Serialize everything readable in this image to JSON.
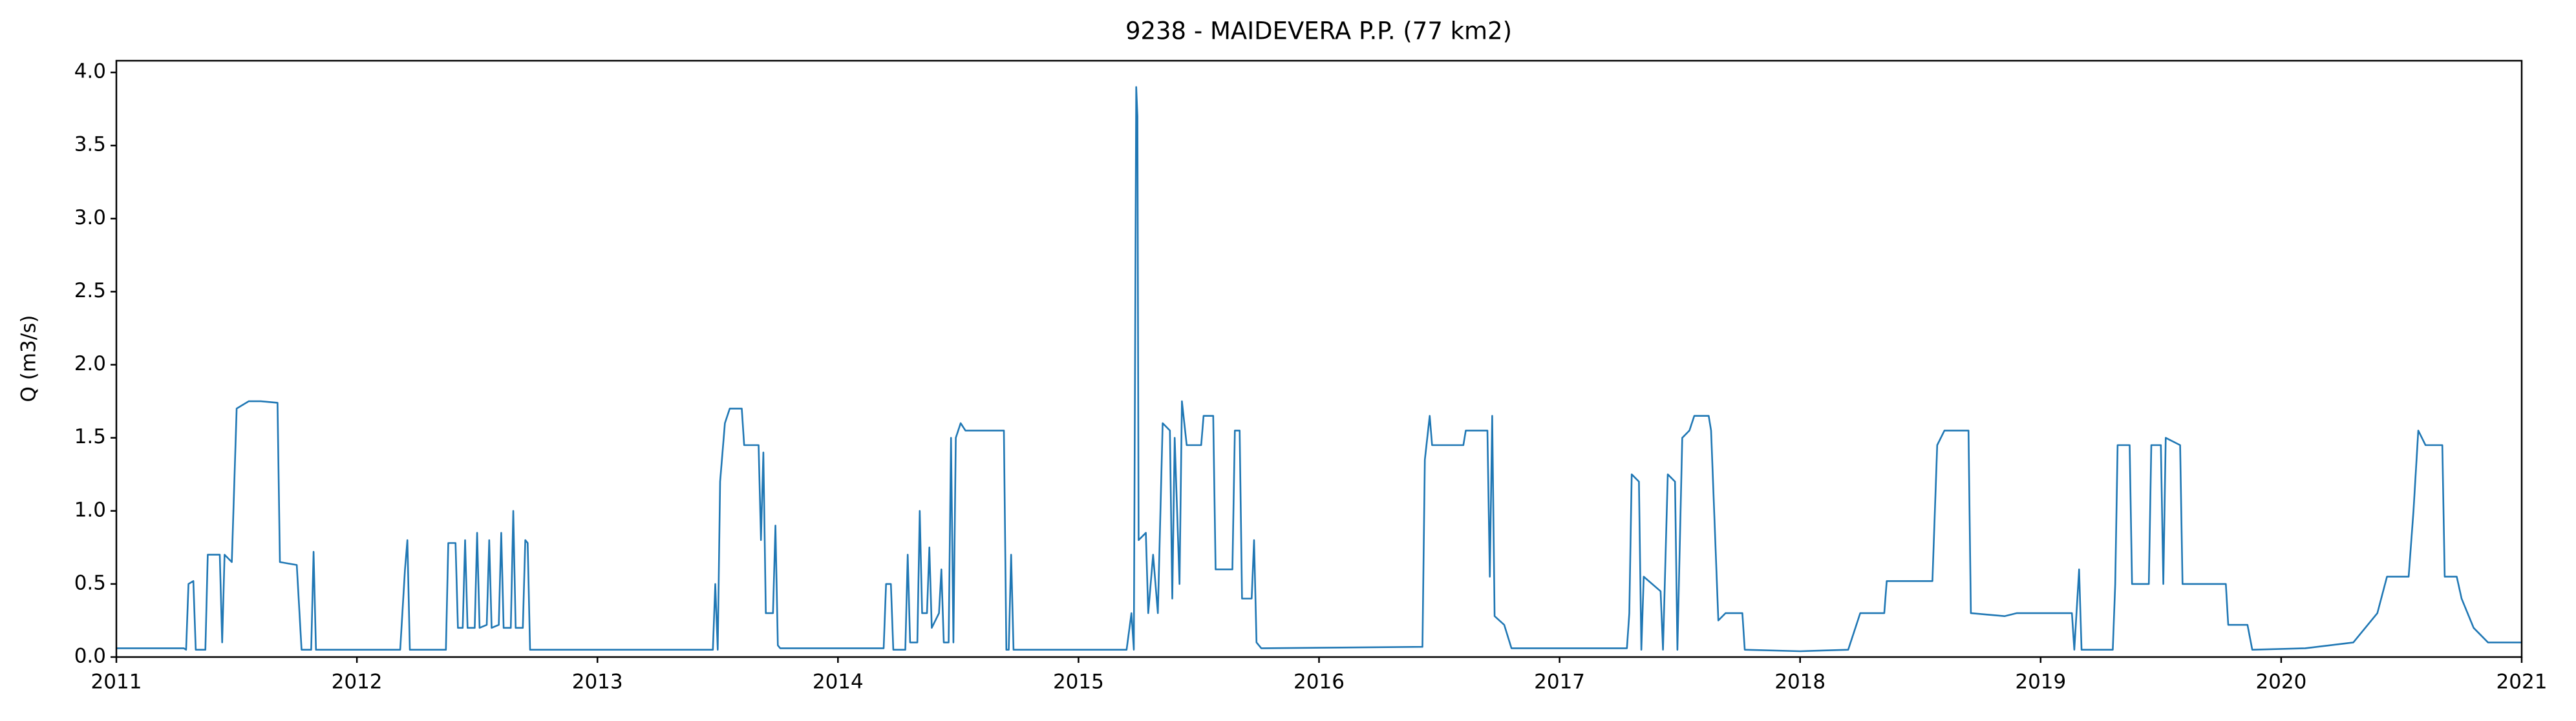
{
  "chart_data": {
    "type": "line",
    "title": "9238 - MAIDEVERA P.P. (77 km2)",
    "y_label": "Q (m3/s)",
    "color": "#1f77b4",
    "x": [
      2011,
      2011.28,
      2011.29,
      2011.3,
      2011.32,
      2011.33,
      2011.37,
      2011.38,
      2011.43,
      2011.44,
      2011.45,
      2011.48,
      2011.5,
      2011.55,
      2011.6,
      2011.67,
      2011.68,
      2011.75,
      2011.77,
      2011.81,
      2011.82,
      2011.83,
      2012.18,
      2012.2,
      2012.21,
      2012.22,
      2012.37,
      2012.38,
      2012.41,
      2012.42,
      2012.44,
      2012.45,
      2012.46,
      2012.49,
      2012.5,
      2012.51,
      2012.54,
      2012.55,
      2012.56,
      2012.59,
      2012.6,
      2012.61,
      2012.64,
      2012.65,
      2012.66,
      2012.69,
      2012.7,
      2012.71,
      2012.72,
      2013.48,
      2013.49,
      2013.5,
      2013.51,
      2013.53,
      2013.55,
      2013.6,
      2013.61,
      2013.67,
      2013.68,
      2013.69,
      2013.7,
      2013.73,
      2013.74,
      2013.75,
      2013.76,
      2014.19,
      2014.2,
      2014.22,
      2014.23,
      2014.28,
      2014.29,
      2014.3,
      2014.33,
      2014.34,
      2014.35,
      2014.37,
      2014.38,
      2014.39,
      2014.42,
      2014.43,
      2014.44,
      2014.46,
      2014.47,
      2014.48,
      2014.49,
      2014.51,
      2014.53,
      2014.69,
      2014.7,
      2014.71,
      2014.72,
      2014.73,
      2015.2,
      2015.22,
      2015.23,
      2015.24,
      2015.245,
      2015.25,
      2015.28,
      2015.29,
      2015.31,
      2015.33,
      2015.35,
      2015.38,
      2015.39,
      2015.4,
      2015.42,
      2015.43,
      2015.45,
      2015.51,
      2015.52,
      2015.56,
      2015.57,
      2015.64,
      2015.65,
      2015.67,
      2015.68,
      2015.72,
      2015.73,
      2015.74,
      2015.76,
      2016.43,
      2016.44,
      2016.46,
      2016.47,
      2016.6,
      2016.61,
      2016.7,
      2016.71,
      2016.72,
      2016.73,
      2016.77,
      2016.8,
      2017.28,
      2017.29,
      2017.3,
      2017.33,
      2017.34,
      2017.35,
      2017.42,
      2017.43,
      2017.45,
      2017.48,
      2017.49,
      2017.51,
      2017.54,
      2017.56,
      2017.62,
      2017.63,
      2017.66,
      2017.69,
      2017.76,
      2017.77,
      2018.0,
      2018.2,
      2018.25,
      2018.35,
      2018.36,
      2018.55,
      2018.57,
      2018.6,
      2018.7,
      2018.71,
      2018.85,
      2018.9,
      2019.13,
      2019.14,
      2019.16,
      2019.17,
      2019.3,
      2019.31,
      2019.32,
      2019.37,
      2019.38,
      2019.45,
      2019.46,
      2019.5,
      2019.51,
      2019.52,
      2019.58,
      2019.59,
      2019.77,
      2019.78,
      2019.86,
      2019.88,
      2020.1,
      2020.3,
      2020.4,
      2020.44,
      2020.53,
      2020.55,
      2020.57,
      2020.6,
      2020.67,
      2020.68,
      2020.73,
      2020.75,
      2020.8,
      2020.86,
      2021
    ],
    "values": [
      0.06,
      0.06,
      0.05,
      0.5,
      0.52,
      0.05,
      0.05,
      0.7,
      0.7,
      0.1,
      0.7,
      0.65,
      1.7,
      1.75,
      1.75,
      1.74,
      0.65,
      0.63,
      0.05,
      0.05,
      0.72,
      0.05,
      0.05,
      0.6,
      0.8,
      0.05,
      0.05,
      0.78,
      0.78,
      0.2,
      0.2,
      0.8,
      0.2,
      0.2,
      0.85,
      0.2,
      0.22,
      0.8,
      0.2,
      0.22,
      0.85,
      0.2,
      0.2,
      1.0,
      0.2,
      0.2,
      0.8,
      0.78,
      0.05,
      0.05,
      0.5,
      0.05,
      1.2,
      1.6,
      1.7,
      1.7,
      1.45,
      1.45,
      0.8,
      1.4,
      0.3,
      0.3,
      0.9,
      0.08,
      0.06,
      0.06,
      0.5,
      0.5,
      0.05,
      0.05,
      0.7,
      0.1,
      0.1,
      1.0,
      0.3,
      0.3,
      0.75,
      0.2,
      0.3,
      0.6,
      0.1,
      0.1,
      1.5,
      0.1,
      1.5,
      1.6,
      1.55,
      1.55,
      0.05,
      0.05,
      0.7,
      0.05,
      0.05,
      0.3,
      0.05,
      3.9,
      3.7,
      0.8,
      0.85,
      0.3,
      0.7,
      0.3,
      1.6,
      1.55,
      0.4,
      1.5,
      0.5,
      1.75,
      1.45,
      1.45,
      1.65,
      1.65,
      0.6,
      0.6,
      1.55,
      1.55,
      0.4,
      0.4,
      0.8,
      0.1,
      0.06,
      0.07,
      1.35,
      1.65,
      1.45,
      1.45,
      1.55,
      1.55,
      0.55,
      1.65,
      0.28,
      0.22,
      0.06,
      0.06,
      0.3,
      1.25,
      1.2,
      0.05,
      0.55,
      0.45,
      0.05,
      1.25,
      1.2,
      0.05,
      1.5,
      1.55,
      1.65,
      1.65,
      1.55,
      0.25,
      0.3,
      0.3,
      0.05,
      0.04,
      0.05,
      0.3,
      0.3,
      0.52,
      0.52,
      1.45,
      1.55,
      1.55,
      0.3,
      0.28,
      0.3,
      0.3,
      0.05,
      0.6,
      0.05,
      0.05,
      0.5,
      1.45,
      1.45,
      0.5,
      0.5,
      1.45,
      1.45,
      0.5,
      1.5,
      1.45,
      0.5,
      0.5,
      0.22,
      0.22,
      0.05,
      0.06,
      0.1,
      0.3,
      0.55,
      0.55,
      1.0,
      1.55,
      1.45,
      1.45,
      0.55,
      0.55,
      0.4,
      0.2,
      0.1,
      0.1
    ],
    "xlim": [
      2011,
      2021
    ],
    "xticks": [
      2011,
      2012,
      2013,
      2014,
      2015,
      2016,
      2017,
      2018,
      2019,
      2020,
      2021
    ],
    "ylim": [
      0,
      4.08
    ],
    "yticks": [
      {
        "value": 0,
        "label": "0.0"
      },
      0.5,
      {
        "value": 1,
        "label": "1.0"
      },
      1.5,
      {
        "value": 2,
        "label": "2.0"
      },
      2.5,
      {
        "value": 3,
        "label": "3.0"
      },
      3.5,
      {
        "value": 4,
        "label": "4.0"
      }
    ],
    "grid": false
  }
}
